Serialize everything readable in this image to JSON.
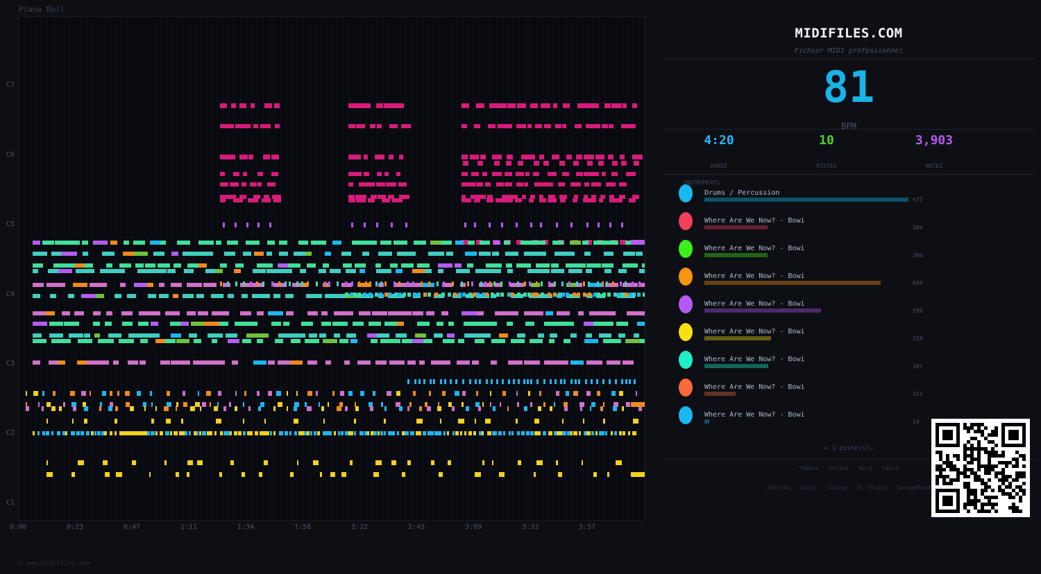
{
  "piano_roll": {
    "title": "Piano Roll",
    "y_labels": [
      {
        "name": "C7",
        "midi": 96
      },
      {
        "name": "C6",
        "midi": 84
      },
      {
        "name": "C5",
        "midi": 72
      },
      {
        "name": "C4",
        "midi": 60
      },
      {
        "name": "C3",
        "midi": 48
      },
      {
        "name": "C2",
        "midi": 36
      },
      {
        "name": "C1",
        "midi": 24
      }
    ],
    "x_labels": [
      "0:00",
      "0:23",
      "0:47",
      "1:11",
      "1:34",
      "1:58",
      "2:22",
      "2:45",
      "3:09",
      "3:33",
      "3:57"
    ],
    "footer": "© www.midifiles.com"
  },
  "panel": {
    "site": "MIDIFILES.COM",
    "subtitle": "Fichier MIDI professionnel",
    "bpm": "81",
    "bpm_label": "BPM",
    "stats": [
      {
        "value": "4:20",
        "label": "DUREE",
        "color": "#29b6f6"
      },
      {
        "value": "10",
        "label": "PISTES",
        "color": "#4cd22a"
      },
      {
        "value": "3,903",
        "label": "NOTES",
        "color": "#b35cf0"
      }
    ],
    "instruments_heading": "INSTRUMENTS",
    "instruments": [
      {
        "name": "Drums / Percussion",
        "count": "977",
        "color": "#19b8f0"
      },
      {
        "name": "Where Are We Now? - Bowi",
        "count": "304",
        "color": "#f0405a"
      },
      {
        "name": "Where Are We Now? - Bowi",
        "count": "304",
        "color": "#3cf01e"
      },
      {
        "name": "Where Are We Now? - Bowi",
        "count": "844",
        "color": "#f79410"
      },
      {
        "name": "Where Are We Now? - Bowi",
        "count": "559",
        "color": "#b45af5"
      },
      {
        "name": "Where Are We Now? - Bowi",
        "count": "319",
        "color": "#f7e010"
      },
      {
        "name": "Where Are We Now? - Bowi",
        "count": "307",
        "color": "#1ef0c8"
      },
      {
        "name": "Where Are We Now? - Bowi",
        "count": "151",
        "color": "#f76a3a"
      },
      {
        "name": "Where Are We Now? - Bowi",
        "count": "24",
        "color": "#19b8f0"
      }
    ],
    "more": "+ 1 piste(s)…",
    "brands_line1": "Yamaha · Roland · Korg · Casio",
    "brands_line2": "Ableton · Logic · Cubase · FL Studio · GarageBand"
  }
}
